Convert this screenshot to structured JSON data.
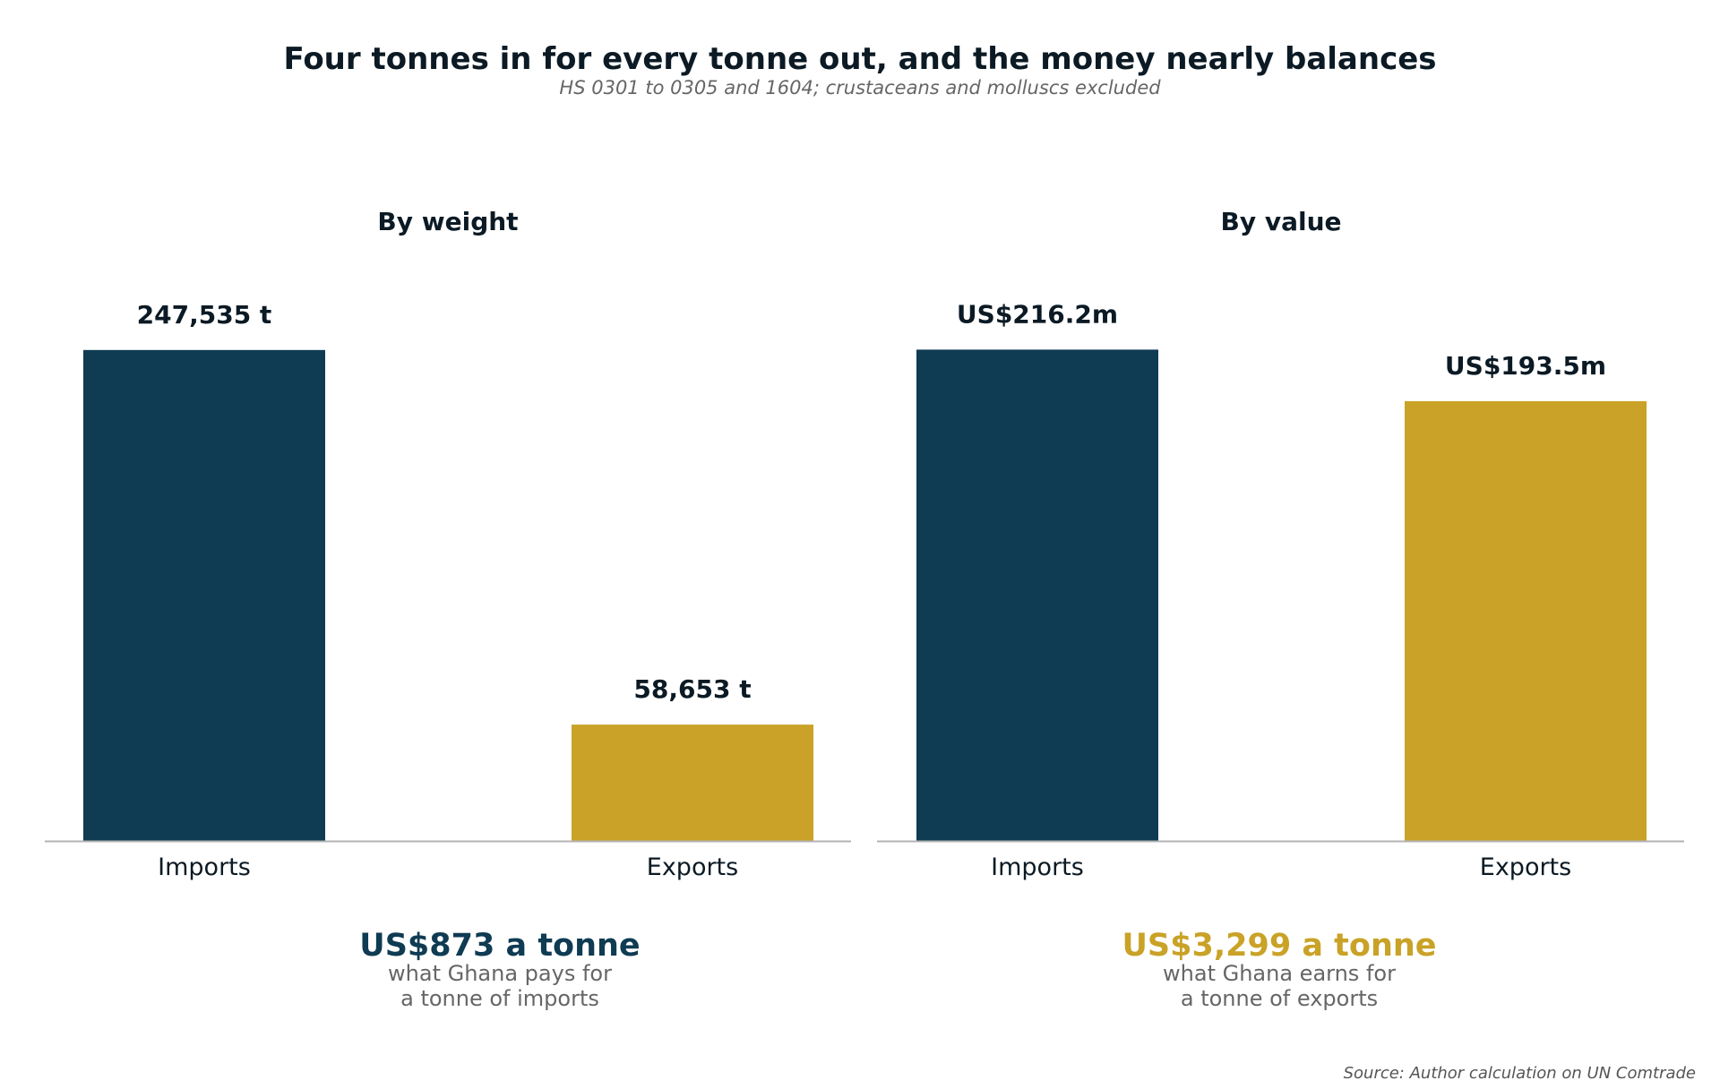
{
  "colors": {
    "imports": "#0f3b53",
    "exports": "#c9a227",
    "axis": "#b3b3b3"
  },
  "chart_data": {
    "title": "Four tonnes in for every tonne out, and the money nearly balances",
    "subtitle": "HS 0301 to 0305 and 1604; crustaceans and molluscs excluded",
    "source": "Source: Author calculation on UN Comtrade",
    "panels": [
      {
        "type": "bar",
        "title": "By weight",
        "categories": [
          "Imports",
          "Exports"
        ],
        "values": [
          247535,
          58653
        ],
        "labels": [
          "247,535 t",
          "58,653 t"
        ],
        "unit": "t",
        "ylim": [
          0,
          275000
        ],
        "grid": false,
        "callout": {
          "headline": "US$873 a tonne",
          "line1": "what Ghana pays for",
          "line2": "a tonne of imports",
          "color": "imports"
        }
      },
      {
        "type": "bar",
        "title": "By value",
        "categories": [
          "Imports",
          "Exports"
        ],
        "values": [
          216.2,
          193.5
        ],
        "labels": [
          "US$216.2m",
          "US$193.5m"
        ],
        "unit": "US$m",
        "ylim": [
          0,
          240
        ],
        "grid": false,
        "callout": {
          "headline": "US$3,299 a tonne",
          "line1": "what Ghana earns for",
          "line2": "a tonne of exports",
          "color": "exports"
        }
      }
    ]
  }
}
